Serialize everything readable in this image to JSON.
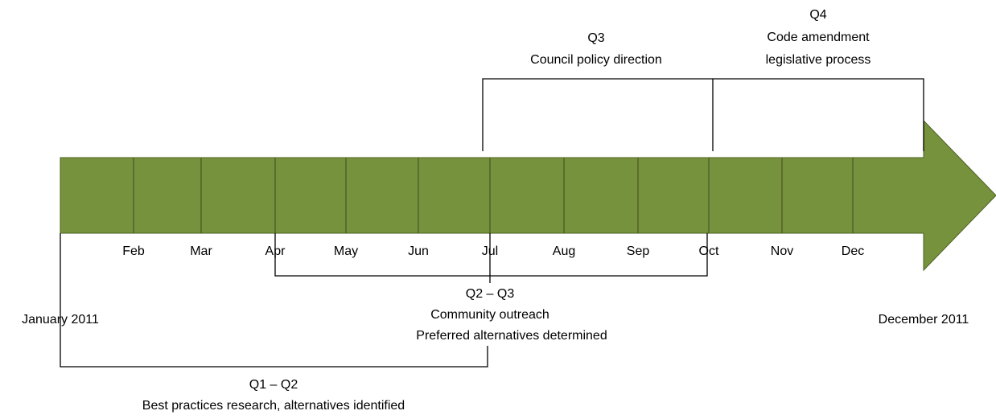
{
  "timeline": {
    "start_label": "January 2011",
    "end_label": "December 2011",
    "months": [
      "Feb",
      "Mar",
      "Apr",
      "May",
      "Jun",
      "Jul",
      "Aug",
      "Sep",
      "Oct",
      "Nov",
      "Dec"
    ],
    "phases": [
      {
        "period": "Q3",
        "lines": [
          "Council policy direction"
        ]
      },
      {
        "period": "Q4",
        "lines": [
          "Code amendment",
          "legislative process"
        ]
      },
      {
        "period": "Q2 – Q3",
        "lines": [
          "Community outreach",
          "Preferred alternatives determined"
        ]
      },
      {
        "period": "Q1 – Q2",
        "lines": [
          "Best practices research, alternatives identified"
        ]
      }
    ]
  }
}
